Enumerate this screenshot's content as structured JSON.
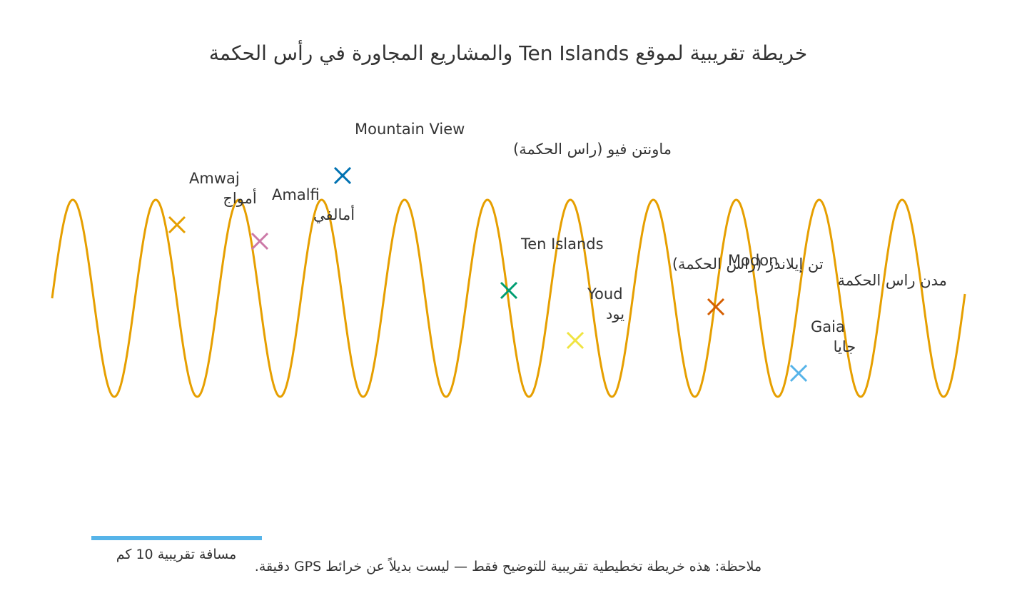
{
  "title": "خريطة تقريبية لموقع Ten Islands والمشاريع المجاورة في رأس الحكمة",
  "colors": {
    "coastline": "#E69F00",
    "text": "#333333",
    "scale_bar": "#56B4E9"
  },
  "coastline": {
    "type": "sine-wave",
    "description_icon": "coastline-wave"
  },
  "places": [
    {
      "id": "amwaj",
      "name_en": "Amwaj",
      "name_ar": "أمواج",
      "marker": "x-marker",
      "color": "#E69F00"
    },
    {
      "id": "amalfi",
      "name_en": "Amalfi",
      "name_ar": "أمالفي",
      "marker": "x-marker",
      "color": "#CC79A7"
    },
    {
      "id": "mountain-view",
      "name_en": "Mountain View",
      "name_ar": "ماونتن فيو (راس الحكمة)",
      "marker": "x-marker",
      "color": "#0072B2"
    },
    {
      "id": "ten-islands",
      "name_en": "Ten Islands",
      "name_ar": "تن إيلاندز (راس الحكمة)",
      "marker": "x-marker",
      "color": "#009E73"
    },
    {
      "id": "youd",
      "name_en": "Youd",
      "name_ar": "يود",
      "marker": "x-marker",
      "color": "#F0E442"
    },
    {
      "id": "modon",
      "name_en": "Modon",
      "name_ar": "مدن راس الحكمة",
      "marker": "x-marker",
      "color": "#D55E00"
    },
    {
      "id": "gaia",
      "name_en": "Gaia",
      "name_ar": "جايا",
      "marker": "x-marker",
      "color": "#56B4E9"
    }
  ],
  "scale": {
    "label": "مسافة تقريبية 10 كم",
    "distance_km": 10
  },
  "note": "ملاحظة: هذه خريطة تخطيطية تقريبية للتوضيح فقط — ليست بديلاً عن خرائط GPS دقيقة."
}
